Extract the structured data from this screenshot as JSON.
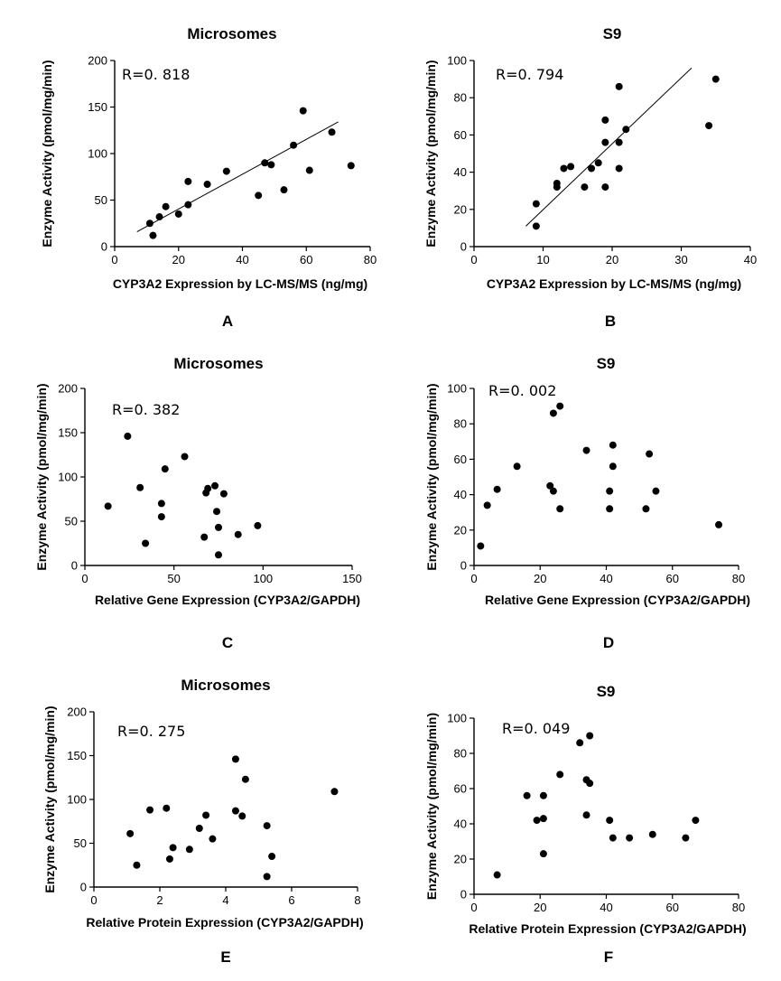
{
  "chart_data": [
    {
      "type": "scatter",
      "panel_letter": "A",
      "title": "Microsomes",
      "xlabel": "CYP3A2 Expression by LC-MS/MS (ng/mg)",
      "ylabel": "Enzyme Activity (pmol/mg/min)",
      "annotation": "R=0. 818",
      "xlim": [
        0,
        80
      ],
      "ylim": [
        0,
        200
      ],
      "xticks": [
        "0",
        "20",
        "40",
        "60",
        "80"
      ],
      "yticks": [
        "0",
        "50",
        "100",
        "150",
        "200"
      ],
      "x": [
        11,
        12,
        14,
        16,
        20,
        23,
        23,
        29,
        35,
        45,
        47,
        49,
        53,
        56,
        59,
        61,
        68,
        74
      ],
      "y": [
        25,
        12,
        32,
        43,
        35,
        45,
        70,
        67,
        81,
        55,
        90,
        88,
        61,
        109,
        146,
        82,
        123,
        87
      ],
      "fit": {
        "x": [
          7,
          70
        ],
        "y": [
          16,
          134
        ]
      }
    },
    {
      "type": "scatter",
      "panel_letter": "B",
      "title": "S9",
      "xlabel": "CYP3A2 Expression by LC-MS/MS (ng/mg)",
      "ylabel": "Enzyme Activity (pmol/mg/min)",
      "annotation": "R=0. 794",
      "xlim": [
        0,
        40
      ],
      "ylim": [
        0,
        100
      ],
      "xticks": [
        "0",
        "10",
        "20",
        "30",
        "40"
      ],
      "yticks": [
        "0",
        "20",
        "40",
        "60",
        "80",
        "100"
      ],
      "x": [
        9,
        9,
        12,
        12,
        13,
        14,
        16,
        17,
        18,
        19,
        19,
        19,
        21,
        21,
        21,
        22,
        34,
        35
      ],
      "y": [
        11,
        23,
        32,
        34,
        42,
        43,
        32,
        42,
        45,
        32,
        56,
        68,
        42,
        56,
        86,
        63,
        65,
        90
      ],
      "fit": {
        "x": [
          7.5,
          31.5
        ],
        "y": [
          11,
          96
        ]
      }
    },
    {
      "type": "scatter",
      "panel_letter": "C",
      "title": "Microsomes",
      "xlabel": "Relative Gene Expression  (CYP3A2/GAPDH)",
      "ylabel": "Enzyme Activity (pmol/mg/min)",
      "annotation": "R=0. 382",
      "xlim": [
        0,
        150
      ],
      "ylim": [
        0,
        200
      ],
      "xticks": [
        "0",
        "50",
        "100",
        "150"
      ],
      "yticks": [
        "0",
        "50",
        "100",
        "150",
        "200"
      ],
      "x": [
        13,
        24,
        31,
        34,
        43,
        43,
        45,
        56,
        67,
        68,
        69,
        73,
        74,
        75,
        75,
        78,
        86,
        97
      ],
      "y": [
        67,
        146,
        88,
        25,
        70,
        55,
        109,
        123,
        32,
        82,
        87,
        90,
        61,
        43,
        12,
        81,
        35,
        45
      ]
    },
    {
      "type": "scatter",
      "panel_letter": "D",
      "title": "S9",
      "xlabel": "Relative Gene Expression  (CYP3A2/GAPDH)",
      "ylabel": "Enzyme Activity (pmol/mg/min)",
      "annotation": "R=0. 002",
      "xlim": [
        0,
        80
      ],
      "ylim": [
        0,
        100
      ],
      "xticks": [
        "0",
        "20",
        "40",
        "60",
        "80"
      ],
      "yticks": [
        "0",
        "20",
        "40",
        "60",
        "80",
        "100"
      ],
      "x": [
        2,
        4,
        7,
        13,
        23,
        24,
        24,
        26,
        26,
        34,
        41,
        41,
        42,
        42,
        52,
        53,
        55,
        74
      ],
      "y": [
        11,
        34,
        43,
        56,
        45,
        42,
        86,
        32,
        90,
        65,
        42,
        32,
        56,
        68,
        32,
        63,
        42,
        23
      ]
    },
    {
      "type": "scatter",
      "panel_letter": "E",
      "title": "Microsomes",
      "xlabel": "Relative Protein Expression   (CYP3A2/GAPDH)",
      "ylabel": "Enzyme Activity (pmol/mg/min)",
      "annotation": "R=0. 275",
      "xlim": [
        0,
        8
      ],
      "ylim": [
        0,
        200
      ],
      "xticks": [
        "0",
        "2",
        "4",
        "6",
        "8"
      ],
      "yticks": [
        "0",
        "50",
        "100",
        "150",
        "200"
      ],
      "x": [
        1.1,
        1.3,
        1.7,
        2.2,
        2.3,
        2.4,
        2.9,
        3.2,
        3.4,
        3.6,
        4.3,
        4.3,
        4.5,
        4.6,
        5.25,
        5.25,
        5.4,
        7.3
      ],
      "y": [
        61,
        25,
        88,
        90,
        32,
        45,
        43,
        67,
        82,
        55,
        146,
        87,
        81,
        123,
        70,
        12,
        35,
        109
      ]
    },
    {
      "type": "scatter",
      "panel_letter": "F",
      "title": "S9",
      "xlabel": "Relative Protein Expression   (CYP3A2/GAPDH)",
      "ylabel": "Enzyme Activity (pmol/mg/min)",
      "annotation": "R=0. 049",
      "xlim": [
        0,
        80
      ],
      "ylim": [
        0,
        100
      ],
      "xticks": [
        "0",
        "20",
        "40",
        "60",
        "80"
      ],
      "yticks": [
        "0",
        "20",
        "40",
        "60",
        "80",
        "100"
      ],
      "x": [
        7,
        16,
        19,
        21,
        21,
        21,
        26,
        32,
        34,
        34,
        35,
        35,
        41,
        42,
        47,
        54,
        64,
        67
      ],
      "y": [
        11,
        56,
        42,
        43,
        56,
        23,
        68,
        86,
        45,
        65,
        63,
        90,
        42,
        32,
        32,
        34,
        32,
        42
      ]
    }
  ]
}
